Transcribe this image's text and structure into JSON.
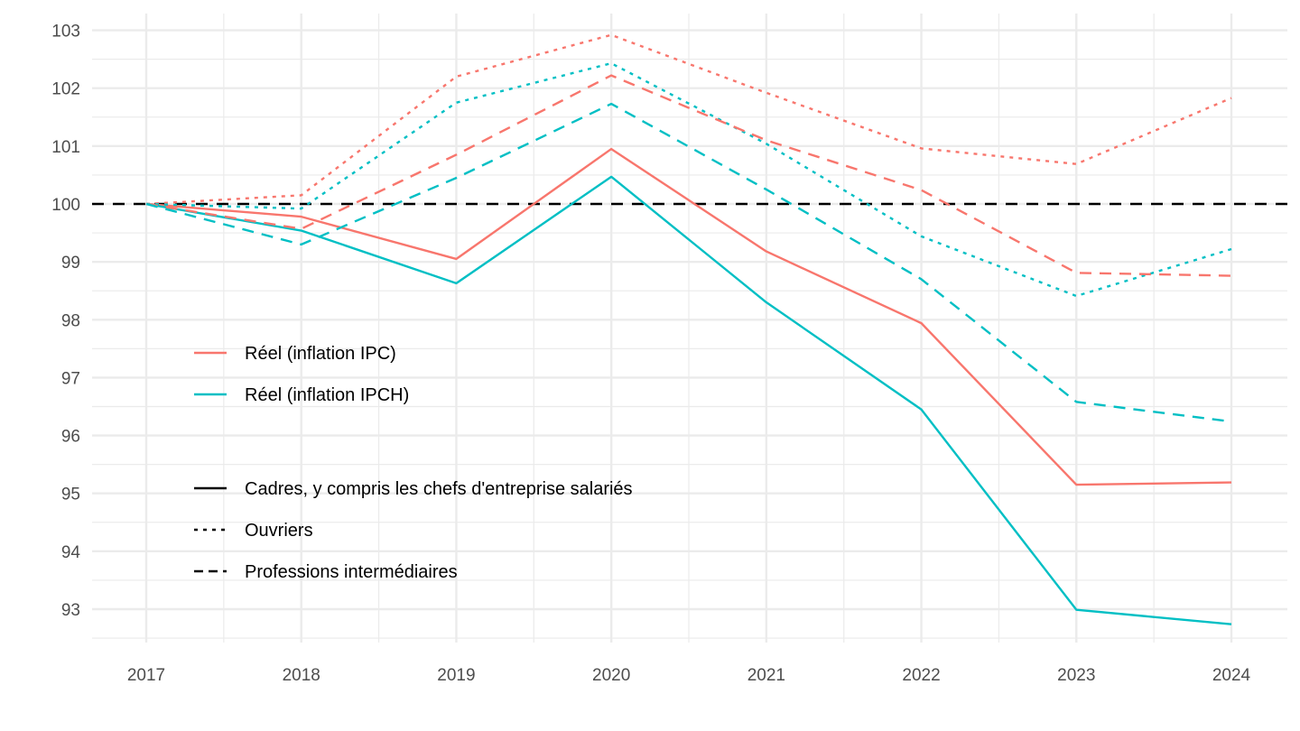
{
  "chart_data": {
    "type": "line",
    "title": "",
    "xlabel": "",
    "ylabel": "",
    "x": [
      2017,
      2018,
      2019,
      2020,
      2021,
      2022,
      2023,
      2024
    ],
    "xlim": [
      2016.65,
      2024.35
    ],
    "ylim": [
      92.45,
      103.25
    ],
    "xticks": [
      "2017",
      "2018",
      "2019",
      "2020",
      "2021",
      "2022",
      "2023",
      "2024"
    ],
    "yticks": [
      "93",
      "94",
      "95",
      "96",
      "97",
      "98",
      "99",
      "100",
      "101",
      "102",
      "103"
    ],
    "grid": true,
    "reference_line": {
      "y": 100,
      "style": "dashed",
      "color": "#000000"
    },
    "colors": {
      "Réel (inflation IPC)": "#F8766D",
      "Réel (inflation IPCH)": "#00BFC4"
    },
    "series": [
      {
        "name": "Cadres, y compris les chefs d'entreprise salariés — Réel (inflation IPC)",
        "deflator": "Réel (inflation IPC)",
        "category": "Cadres, y compris les chefs d'entreprise salariés",
        "linetype": "solid",
        "values": [
          100,
          99.78,
          99.05,
          100.95,
          99.18,
          97.94,
          95.15,
          95.19
        ]
      },
      {
        "name": "Cadres, y compris les chefs d'entreprise salariés — Réel (inflation IPCH)",
        "deflator": "Réel (inflation IPCH)",
        "category": "Cadres, y compris les chefs d'entreprise salariés",
        "linetype": "solid",
        "values": [
          100,
          99.54,
          98.63,
          100.47,
          98.3,
          96.45,
          92.99,
          92.74
        ]
      },
      {
        "name": "Ouvriers — Réel (inflation IPC)",
        "deflator": "Réel (inflation IPC)",
        "category": "Ouvriers",
        "linetype": "dotted",
        "values": [
          100,
          100.15,
          102.2,
          102.92,
          101.92,
          100.96,
          100.69,
          101.83
        ]
      },
      {
        "name": "Ouvriers — Réel (inflation IPCH)",
        "deflator": "Réel (inflation IPCH)",
        "category": "Ouvriers",
        "linetype": "dotted",
        "values": [
          100,
          99.92,
          101.75,
          102.43,
          101.04,
          99.44,
          98.41,
          99.22
        ]
      },
      {
        "name": "Professions intermédiaires — Réel (inflation IPC)",
        "deflator": "Réel (inflation IPC)",
        "category": "Professions intermédiaires",
        "linetype": "dashed",
        "values": [
          100,
          99.57,
          100.85,
          102.22,
          101.1,
          100.24,
          98.81,
          98.76
        ]
      },
      {
        "name": "Professions intermédiaires — Réel (inflation IPCH)",
        "deflator": "Réel (inflation IPCH)",
        "category": "Professions intermédiaires",
        "linetype": "dashed",
        "values": [
          100,
          99.3,
          100.45,
          101.73,
          100.25,
          98.7,
          96.58,
          96.24
        ]
      }
    ],
    "legend": {
      "placement": "inside-left",
      "color_entries": [
        {
          "label": "Réel (inflation IPC)",
          "color": "#F8766D"
        },
        {
          "label": "Réel (inflation IPCH)",
          "color": "#00BFC4"
        }
      ],
      "linetype_entries": [
        {
          "label": "Cadres, y compris les chefs d'entreprise salariés",
          "linetype": "solid"
        },
        {
          "label": "Ouvriers",
          "linetype": "dotted"
        },
        {
          "label": "Professions intermédiaires",
          "linetype": "dashed"
        }
      ]
    }
  }
}
